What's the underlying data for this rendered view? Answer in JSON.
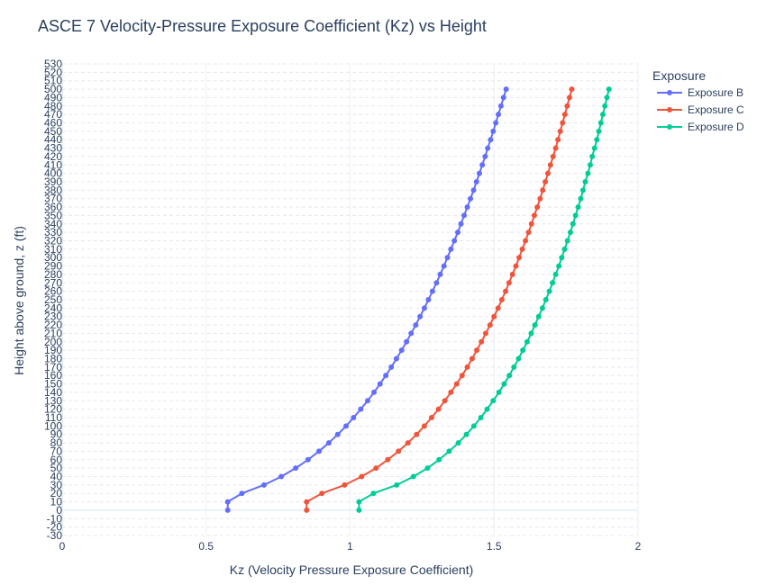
{
  "chart_data": {
    "type": "line",
    "title": "ASCE 7 Velocity-Pressure Exposure Coefficient (Kz) vs Height",
    "xlabel": "Kz (Velocity Pressure Exposure Coefficient)",
    "ylabel": "Height above ground, z (ft)",
    "xlim": [
      0,
      2
    ],
    "ylim": [
      -30,
      530
    ],
    "x_ticks": [
      0,
      0.5,
      1,
      1.5,
      2
    ],
    "x_tick_labels": [
      "0",
      "0.5",
      "1",
      "1.5",
      "2"
    ],
    "y_tick_start": -30,
    "y_tick_end": 530,
    "y_tick_step": 10,
    "grid": true,
    "legend": {
      "title": "Exposure",
      "placement": "top-right"
    },
    "heights": [
      0,
      10,
      20,
      30,
      40,
      50,
      60,
      70,
      80,
      90,
      100,
      110,
      120,
      130,
      140,
      150,
      160,
      170,
      180,
      190,
      200,
      210,
      220,
      230,
      240,
      250,
      260,
      270,
      280,
      290,
      300,
      310,
      320,
      330,
      340,
      350,
      360,
      370,
      380,
      390,
      400,
      410,
      420,
      430,
      440,
      450,
      460,
      470,
      480,
      490,
      500
    ],
    "series": [
      {
        "name": "Exposure B",
        "color": "#636efa",
        "kz": [
          0.575,
          0.575,
          0.624,
          0.701,
          0.761,
          0.811,
          0.854,
          0.892,
          0.926,
          0.957,
          0.986,
          1.012,
          1.037,
          1.061,
          1.083,
          1.104,
          1.124,
          1.143,
          1.161,
          1.179,
          1.196,
          1.212,
          1.228,
          1.243,
          1.258,
          1.272,
          1.286,
          1.3,
          1.313,
          1.326,
          1.338,
          1.35,
          1.362,
          1.374,
          1.385,
          1.396,
          1.407,
          1.418,
          1.429,
          1.439,
          1.449,
          1.459,
          1.469,
          1.478,
          1.488,
          1.497,
          1.506,
          1.515,
          1.524,
          1.533,
          1.542
        ]
      },
      {
        "name": "Exposure C",
        "color": "#ef553b",
        "kz": [
          0.849,
          0.849,
          0.902,
          0.981,
          1.04,
          1.09,
          1.131,
          1.168,
          1.201,
          1.231,
          1.258,
          1.283,
          1.307,
          1.329,
          1.35,
          1.37,
          1.389,
          1.407,
          1.424,
          1.44,
          1.456,
          1.471,
          1.486,
          1.5,
          1.514,
          1.527,
          1.54,
          1.552,
          1.564,
          1.576,
          1.587,
          1.598,
          1.609,
          1.62,
          1.63,
          1.64,
          1.65,
          1.66,
          1.669,
          1.678,
          1.687,
          1.696,
          1.705,
          1.714,
          1.722,
          1.73,
          1.738,
          1.746,
          1.754,
          1.762,
          1.77
        ]
      },
      {
        "name": "Exposure D",
        "color": "#00cc96",
        "kz": [
          1.031,
          1.031,
          1.081,
          1.162,
          1.22,
          1.269,
          1.309,
          1.344,
          1.376,
          1.404,
          1.43,
          1.454,
          1.476,
          1.497,
          1.517,
          1.535,
          1.553,
          1.569,
          1.585,
          1.6,
          1.615,
          1.629,
          1.642,
          1.655,
          1.668,
          1.68,
          1.692,
          1.703,
          1.714,
          1.725,
          1.735,
          1.745,
          1.755,
          1.765,
          1.774,
          1.783,
          1.792,
          1.801,
          1.809,
          1.817,
          1.826,
          1.834,
          1.841,
          1.849,
          1.857,
          1.864,
          1.871,
          1.878,
          1.885,
          1.892,
          1.899
        ]
      }
    ]
  }
}
